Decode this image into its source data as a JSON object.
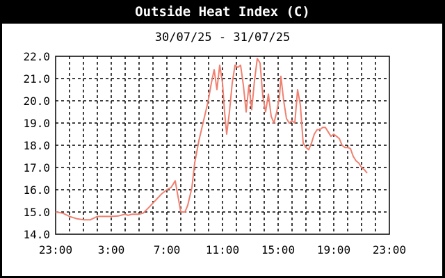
{
  "title": "Outside Heat Index (C)",
  "subtitle": "30/07/25 - 31/07/25",
  "colors": {
    "line": "#f08070",
    "grid": "#000000",
    "background": "#ffffff",
    "header": "#000000"
  },
  "chart_data": {
    "type": "line",
    "title": "Outside Heat Index (C)",
    "subtitle": "30/07/25 - 31/07/25",
    "xlabel": "",
    "ylabel": "",
    "x_range_hours": [
      0,
      24
    ],
    "x_tick_hours": [
      0,
      4,
      8,
      12,
      16,
      20,
      24
    ],
    "x_tick_labels": [
      "23:00",
      "3:00",
      "7:00",
      "11:00",
      "15:00",
      "19:00",
      "23:00"
    ],
    "ylim": [
      14.0,
      22.0
    ],
    "y_ticks": [
      14.0,
      15.0,
      16.0,
      17.0,
      18.0,
      19.0,
      20.0,
      21.0,
      22.0
    ],
    "y_tick_labels": [
      "14.0",
      "15.0",
      "16.0",
      "17.0",
      "18.0",
      "19.0",
      "20.0",
      "21.0",
      "22.0"
    ],
    "grid": true,
    "legend": "none",
    "series": [
      {
        "points": [
          [
            0.0,
            15.0
          ],
          [
            0.5,
            14.95
          ],
          [
            1.0,
            14.8
          ],
          [
            1.5,
            14.7
          ],
          [
            2.0,
            14.65
          ],
          [
            2.5,
            14.65
          ],
          [
            3.0,
            14.8
          ],
          [
            3.5,
            14.8
          ],
          [
            4.0,
            14.8
          ],
          [
            4.5,
            14.82
          ],
          [
            5.0,
            14.9
          ],
          [
            5.2,
            14.85
          ],
          [
            5.5,
            14.9
          ],
          [
            6.0,
            14.9
          ],
          [
            6.3,
            14.95
          ],
          [
            6.7,
            15.2
          ],
          [
            7.0,
            15.4
          ],
          [
            7.3,
            15.6
          ],
          [
            7.6,
            15.8
          ],
          [
            8.0,
            16.0
          ],
          [
            8.3,
            16.1
          ],
          [
            8.6,
            16.4
          ],
          [
            8.8,
            15.7
          ],
          [
            9.0,
            15.0
          ],
          [
            9.3,
            15.0
          ],
          [
            9.5,
            15.3
          ],
          [
            9.8,
            16.1
          ],
          [
            10.0,
            17.2
          ],
          [
            10.3,
            18.2
          ],
          [
            10.6,
            19.0
          ],
          [
            10.9,
            19.8
          ],
          [
            11.0,
            20.1
          ],
          [
            11.2,
            20.8
          ],
          [
            11.4,
            21.4
          ],
          [
            11.6,
            20.5
          ],
          [
            11.8,
            21.6
          ],
          [
            12.0,
            20.8
          ],
          [
            12.15,
            19.5
          ],
          [
            12.3,
            18.5
          ],
          [
            12.5,
            19.5
          ],
          [
            12.7,
            20.8
          ],
          [
            12.9,
            21.6
          ],
          [
            13.1,
            21.5
          ],
          [
            13.3,
            21.6
          ],
          [
            13.5,
            20.7
          ],
          [
            13.7,
            19.5
          ],
          [
            13.9,
            20.7
          ],
          [
            14.1,
            19.6
          ],
          [
            14.3,
            20.9
          ],
          [
            14.5,
            21.9
          ],
          [
            14.7,
            21.7
          ],
          [
            14.9,
            20.2
          ],
          [
            15.1,
            19.5
          ],
          [
            15.3,
            20.3
          ],
          [
            15.5,
            19.3
          ],
          [
            15.7,
            19.0
          ],
          [
            15.9,
            19.5
          ],
          [
            16.1,
            20.2
          ],
          [
            16.2,
            21.1
          ],
          [
            16.4,
            20.0
          ],
          [
            16.6,
            19.2
          ],
          [
            16.8,
            19.0
          ],
          [
            17.0,
            19.1
          ],
          [
            17.2,
            19.0
          ],
          [
            17.4,
            20.5
          ],
          [
            17.6,
            19.8
          ],
          [
            17.8,
            18.1
          ],
          [
            18.0,
            17.9
          ],
          [
            18.2,
            17.8
          ],
          [
            18.4,
            18.1
          ],
          [
            18.6,
            18.5
          ],
          [
            18.8,
            18.7
          ],
          [
            19.0,
            18.7
          ],
          [
            19.2,
            18.8
          ],
          [
            19.4,
            18.8
          ],
          [
            19.6,
            18.6
          ],
          [
            19.8,
            18.4
          ],
          [
            20.0,
            18.5
          ],
          [
            20.2,
            18.4
          ],
          [
            20.4,
            18.3
          ],
          [
            20.6,
            18.0
          ],
          [
            20.8,
            17.9
          ],
          [
            21.0,
            17.9
          ],
          [
            21.2,
            17.85
          ],
          [
            21.4,
            17.5
          ],
          [
            21.6,
            17.3
          ],
          [
            21.8,
            17.2
          ],
          [
            22.0,
            17.0
          ],
          [
            22.2,
            16.9
          ],
          [
            22.4,
            16.75
          ]
        ]
      }
    ]
  }
}
